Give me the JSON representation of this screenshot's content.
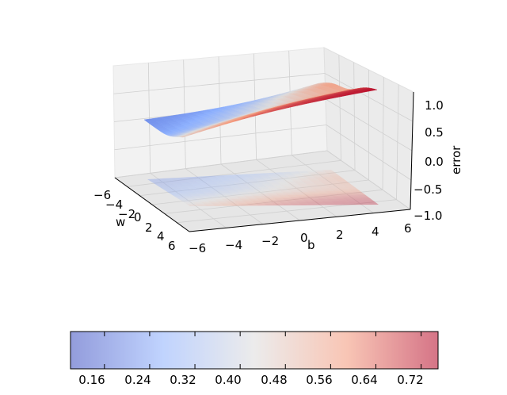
{
  "chart_data": [
    {
      "type": "surface3d",
      "xlabel": "w",
      "ylabel": "b",
      "zlabel": "error",
      "xticks": [
        "−6",
        "−4",
        "−2",
        "0",
        "2",
        "4",
        "6"
      ],
      "yticks": [
        "−6",
        "−4",
        "−2",
        "0",
        "2",
        "4",
        "6"
      ],
      "zticks": [
        "1.0",
        "0.5",
        "0.0",
        "−0.5",
        "−1.0"
      ],
      "xlim": [
        -6,
        6
      ],
      "ylim": [
        -6,
        6
      ],
      "zlim": [
        -1.0,
        1.0
      ],
      "surface_z_range": [
        0.1,
        0.75
      ],
      "contour_offset_z": -1.0,
      "colormap": "coolwarm",
      "grid": true
    },
    {
      "type": "colorbar",
      "orientation": "horizontal",
      "ticks": [
        "0.16",
        "0.24",
        "0.32",
        "0.40",
        "0.48",
        "0.56",
        "0.64",
        "0.72"
      ],
      "range": [
        0.1,
        0.75
      ]
    }
  ],
  "colors": {
    "low": "#3b4cc0",
    "mid": "#dddddd",
    "high": "#b40426"
  }
}
